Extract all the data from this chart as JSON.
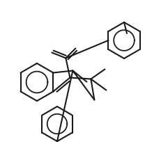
{
  "bg_color": "#ffffff",
  "line_color": "#1a1a1a",
  "line_width": 1.5,
  "figsize": [
    2.41,
    2.04
  ],
  "dpi": 100
}
